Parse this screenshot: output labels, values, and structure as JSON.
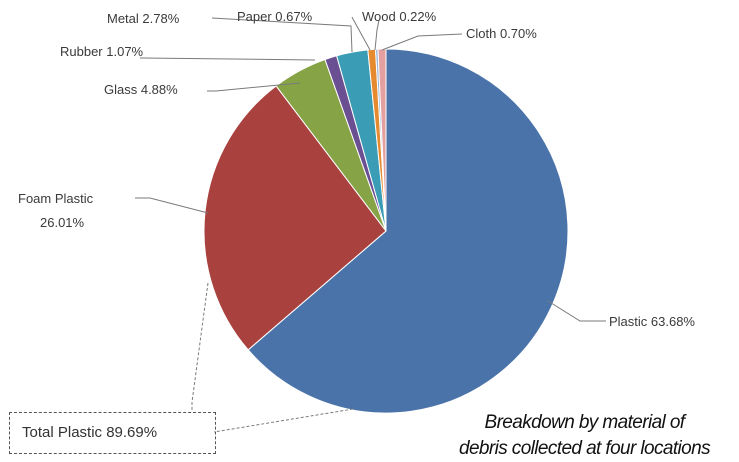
{
  "chart_data": {
    "type": "pie",
    "title": "Breakdown by material of debris collected at four locations",
    "slices": [
      {
        "name": "Plastic",
        "value": 63.68,
        "label": "Plastic 63.68%",
        "color": "#4a74a9"
      },
      {
        "name": "Foam Plastic",
        "value": 26.01,
        "label_line1": "Foam Plastic",
        "label_line2": "26.01%",
        "color": "#a9413e"
      },
      {
        "name": "Glass",
        "value": 4.88,
        "label": "Glass 4.88%",
        "color": "#86a346"
      },
      {
        "name": "Rubber",
        "value": 1.07,
        "label": "Rubber 1.07%",
        "color": "#6b4f93"
      },
      {
        "name": "Metal",
        "value": 2.78,
        "label": "Metal 2.78%",
        "color": "#3a9cb5"
      },
      {
        "name": "Paper",
        "value": 0.67,
        "label": "Paper 0.67%",
        "color": "#e58a2f"
      },
      {
        "name": "Wood",
        "value": 0.22,
        "label": "Wood 0.22%",
        "color": "#9ab5d8"
      },
      {
        "name": "Cloth",
        "value": 0.7,
        "label": "Cloth 0.70%",
        "color": "#e4a0a0"
      }
    ],
    "annotation": "Total Plastic 89.69%",
    "caption_line1": "Breakdown by material of",
    "caption_line2": "debris collected at four locations"
  }
}
